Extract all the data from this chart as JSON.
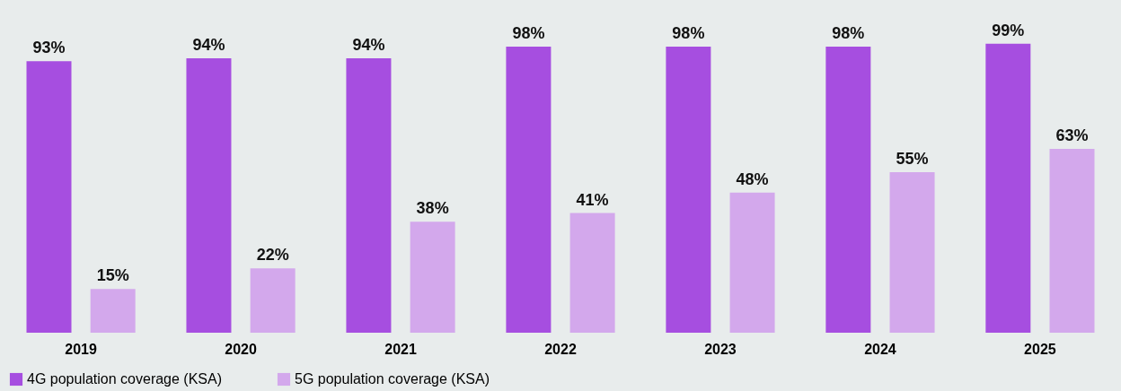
{
  "chart_data": {
    "type": "bar",
    "categories": [
      "2019",
      "2020",
      "2021",
      "2022",
      "2023",
      "2024",
      "2025"
    ],
    "series": [
      {
        "name": "4G population coverage (KSA)",
        "color": "#a64ee0",
        "values": [
          93,
          94,
          94,
          98,
          98,
          98,
          99
        ],
        "value_labels": [
          "93%",
          "94%",
          "94%",
          "98%",
          "98%",
          "98%",
          "99%"
        ]
      },
      {
        "name": "5G population coverage (KSA)",
        "color": "#d3a8ec",
        "values": [
          15,
          22,
          38,
          41,
          48,
          55,
          63
        ],
        "value_labels": [
          "15%",
          "22%",
          "38%",
          "41%",
          "48%",
          "55%",
          "63%"
        ]
      }
    ],
    "legend": "bottom left",
    "grid": false
  }
}
